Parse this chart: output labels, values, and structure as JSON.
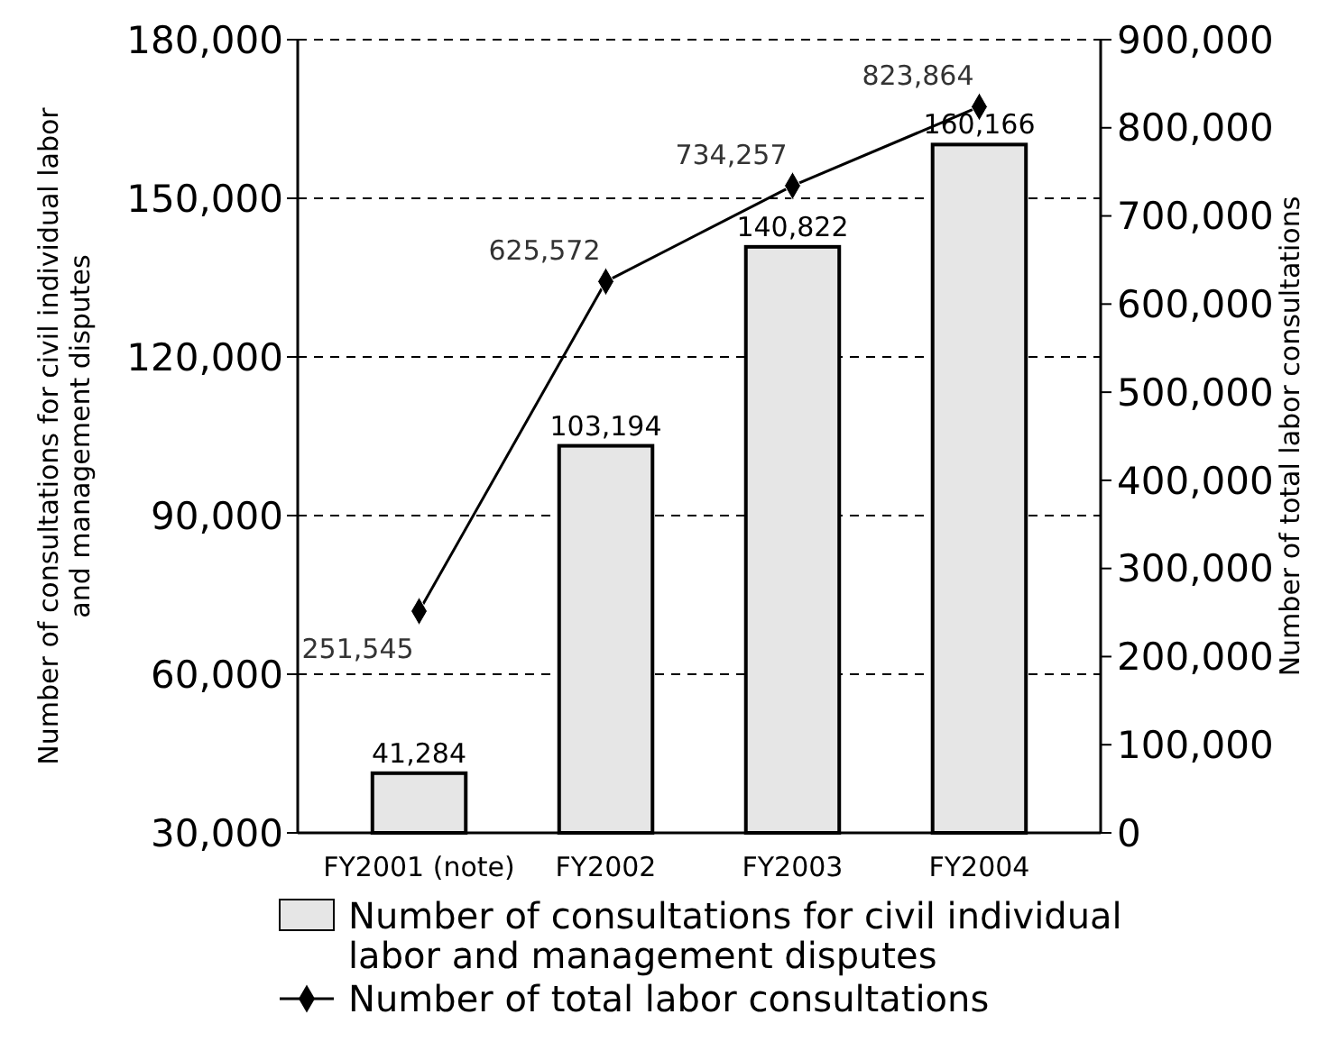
{
  "chart_data": {
    "type": "bar",
    "categories": [
      "FY2001 (note)",
      "FY2002",
      "FY2003",
      "FY2004"
    ],
    "ylabel": "Number of consultations for civil individual labor and management disputes",
    "y2label": "Number of total labor consultations",
    "series": [
      {
        "name": "Number of consultations for civil individual labor and management disputes",
        "color": "#e6e6e6",
        "values": [
          41284,
          103194,
          140822,
          160166
        ],
        "value_labels": [
          "41,284",
          "103,194",
          "140,822",
          "160,166"
        ]
      },
      {
        "name": "Number of total labor consultations",
        "type": "line",
        "axis": "y2",
        "color": "#000000",
        "values": [
          251545,
          625572,
          734257,
          823864
        ],
        "value_labels": [
          "251,545",
          "625,572",
          "734,257",
          "823,864"
        ]
      }
    ],
    "ylim": [
      30000,
      180000
    ],
    "yticks": [
      {
        "value": 30000,
        "label": "30,000"
      },
      {
        "value": 60000,
        "label": "60,000"
      },
      {
        "value": 90000,
        "label": "90,000"
      },
      {
        "value": 120000,
        "label": "120,000"
      },
      {
        "value": 150000,
        "label": "150,000"
      },
      {
        "value": 180000,
        "label": "180,000"
      }
    ],
    "y2lim": [
      0,
      900000
    ],
    "y2ticks": [
      0,
      {
        "value": 100000,
        "label": "100,000"
      },
      {
        "value": 200000,
        "label": "200,000"
      },
      {
        "value": 300000,
        "label": "300,000"
      },
      {
        "value": 400000,
        "label": "400,000"
      },
      {
        "value": 500000,
        "label": "500,000"
      },
      {
        "value": 600000,
        "label": "600,000"
      },
      {
        "value": 700000,
        "label": "700,000"
      },
      {
        "value": 800000,
        "label": "800,000"
      },
      {
        "value": 900000,
        "label": "900,000"
      }
    ],
    "grid": "y",
    "marker": "diamond",
    "line_style": "solid",
    "legend": "bottom"
  }
}
